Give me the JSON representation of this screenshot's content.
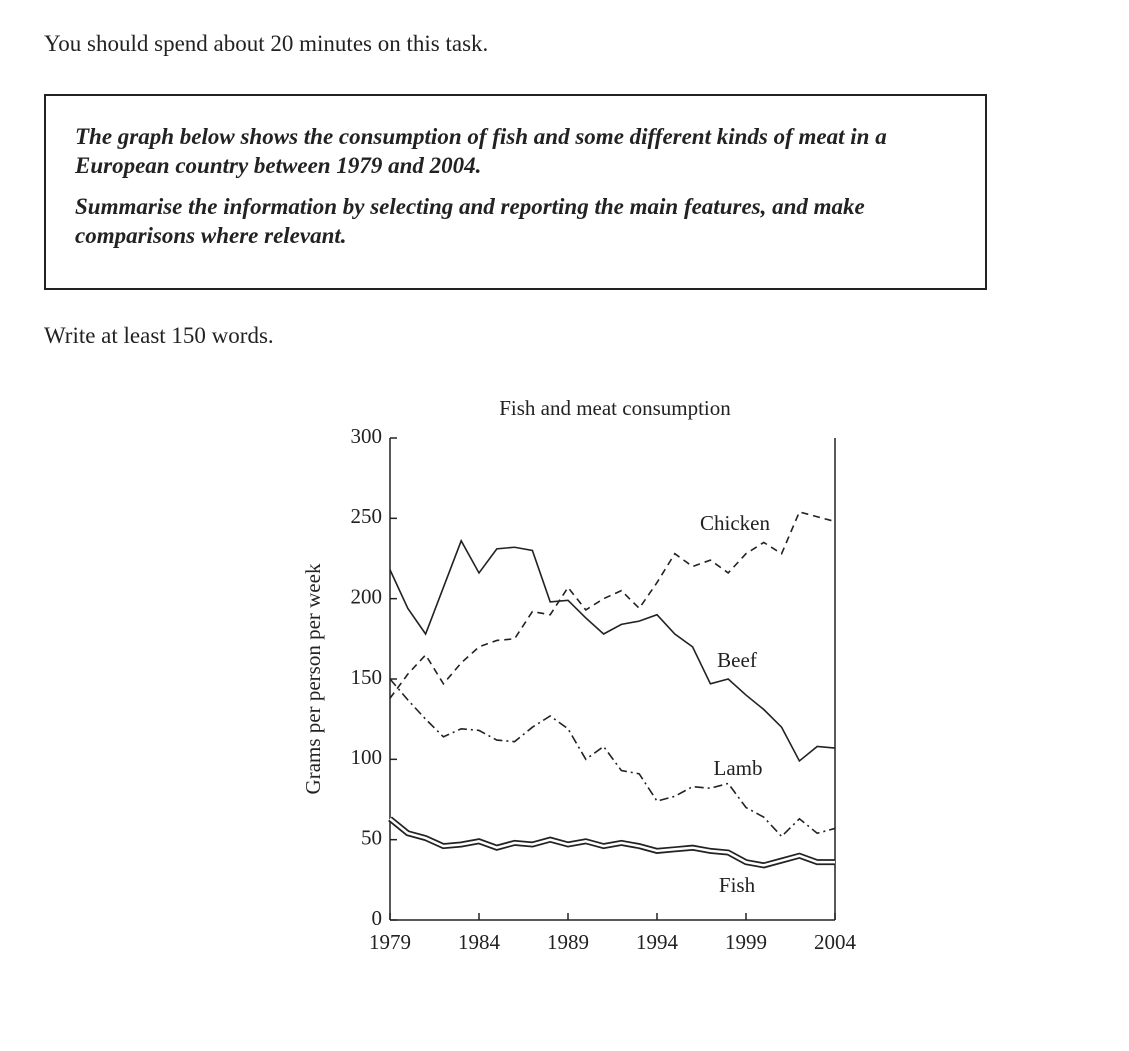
{
  "task": {
    "time_note": "You should spend about 20 minutes on this task.",
    "prompt": [
      "The graph below shows the consumption of fish and some different kinds of meat in a European country between 1979 and 2004.",
      "Summarise the information by selecting and reporting the main features, and make comparisons where relevant."
    ],
    "word_note": "Write at least 150 words."
  },
  "chart_data": {
    "type": "line",
    "title": "Fish and meat consumption",
    "y_label": "Grams per person per week",
    "x": [
      1979,
      1980,
      1981,
      1982,
      1983,
      1984,
      1985,
      1986,
      1987,
      1988,
      1989,
      1990,
      1991,
      1992,
      1993,
      1994,
      1995,
      1996,
      1997,
      1998,
      1999,
      2000,
      2001,
      2002,
      2003,
      2004
    ],
    "xlim": [
      1979,
      2004
    ],
    "xticks": [
      1979,
      1984,
      1989,
      1994,
      1999,
      2004
    ],
    "ylim": [
      0,
      300
    ],
    "yticks": [
      0,
      50,
      100,
      150,
      200,
      250,
      300
    ],
    "series": [
      {
        "name": "Chicken",
        "color": "#222222",
        "line_style": "dashed",
        "values": [
          138,
          153,
          165,
          147,
          160,
          170,
          174,
          175,
          192,
          190,
          207,
          193,
          200,
          205,
          194,
          210,
          228,
          220,
          224,
          216,
          228,
          235,
          228,
          254,
          251,
          248
        ]
      },
      {
        "name": "Beef",
        "color": "#222222",
        "line_style": "solid",
        "values": [
          218,
          194,
          178,
          207,
          236,
          216,
          231,
          232,
          230,
          198,
          199,
          188,
          178,
          184,
          186,
          190,
          178,
          170,
          147,
          150,
          140,
          131,
          120,
          99,
          108,
          107
        ]
      },
      {
        "name": "Lamb",
        "color": "#222222",
        "line_style": "dash-dot",
        "values": [
          150,
          137,
          125,
          114,
          119,
          118,
          112,
          111,
          120,
          127,
          119,
          100,
          108,
          93,
          91,
          74,
          77,
          83,
          82,
          85,
          70,
          64,
          52,
          63,
          54,
          57
        ]
      },
      {
        "name": "Fish",
        "color": "#222222",
        "line_style": "double",
        "values": [
          63,
          54,
          51,
          46,
          47,
          49,
          45,
          48,
          47,
          50,
          47,
          49,
          46,
          48,
          46,
          43,
          44,
          45,
          43,
          42,
          36,
          34,
          37,
          40,
          36,
          36
        ]
      }
    ]
  }
}
